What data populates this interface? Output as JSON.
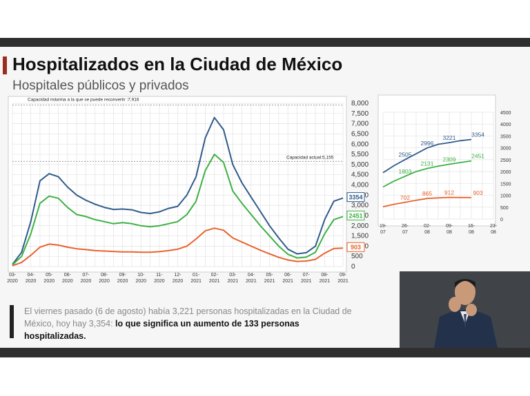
{
  "slide": {
    "title": "Hospitalizados en la Ciudad de México",
    "subtitle": "Hospitales públicos y privados",
    "note_plain": "El viernes pasado (6 de agosto) había 3,221 personas hospitalizadas en la Ciudad de México, hoy hay 3,354: ",
    "note_bold": "lo que significa un aumento de 133 personas hospitalizadas."
  },
  "colors": {
    "blue": "#2e5a8a",
    "green": "#3cb043",
    "orange": "#e8622c",
    "accent": "#9b2c1f"
  },
  "chart_data": [
    {
      "type": "line",
      "x_tick_labels": [
        "03-\n2020",
        "04-\n2020",
        "05-\n2020",
        "06-\n2020",
        "07-\n2020",
        "08-\n2020",
        "09-\n2020",
        "10-\n2020",
        "11-\n2020",
        "12-\n2020",
        "01-\n2021",
        "02-\n2021",
        "03-\n2021",
        "04-\n2021",
        "05-\n2021",
        "06-\n2021",
        "07-\n2021",
        "08-\n2021",
        "09-\n2021"
      ],
      "y_tick_labels": [
        "8,000",
        "7,500",
        "7,000",
        "6,500",
        "6,000",
        "5,500",
        "5,000",
        "4,500",
        "4,000",
        "3,500",
        "3,000",
        "2,500",
        "2,000",
        "1,500",
        "1,000",
        "500",
        "0"
      ],
      "ylim": [
        0,
        8000
      ],
      "grid": true,
      "reference_lines": [
        {
          "label": "Capacidad máxima a la que se puede reconvertir :7,916",
          "value": 7916
        },
        {
          "label": "Capacidad actual:5,155",
          "value": 5155
        }
      ],
      "series": [
        {
          "color": "#2e5a8a",
          "end_label": "3354",
          "points": [
            [
              0,
              100
            ],
            [
              0.5,
              700
            ],
            [
              1,
              2200
            ],
            [
              1.5,
              4200
            ],
            [
              2,
              4550
            ],
            [
              2.5,
              4400
            ],
            [
              3,
              3900
            ],
            [
              3.5,
              3500
            ],
            [
              4,
              3250
            ],
            [
              4.5,
              3050
            ],
            [
              5,
              2900
            ],
            [
              5.5,
              2800
            ],
            [
              6,
              2820
            ],
            [
              6.5,
              2780
            ],
            [
              7,
              2650
            ],
            [
              7.5,
              2600
            ],
            [
              8,
              2680
            ],
            [
              8.5,
              2850
            ],
            [
              9,
              2950
            ],
            [
              9.5,
              3500
            ],
            [
              10,
              4400
            ],
            [
              10.5,
              6300
            ],
            [
              11,
              7300
            ],
            [
              11.5,
              6700
            ],
            [
              12,
              5000
            ],
            [
              12.5,
              4100
            ],
            [
              13,
              3400
            ],
            [
              13.5,
              2700
            ],
            [
              14,
              2000
            ],
            [
              14.5,
              1400
            ],
            [
              15,
              850
            ],
            [
              15.5,
              620
            ],
            [
              16,
              680
            ],
            [
              16.5,
              1000
            ],
            [
              17,
              2300
            ],
            [
              17.5,
              3200
            ],
            [
              18,
              3354
            ]
          ]
        },
        {
          "color": "#3cb043",
          "end_label": "2451",
          "points": [
            [
              0,
              80
            ],
            [
              0.5,
              500
            ],
            [
              1,
              1600
            ],
            [
              1.5,
              3100
            ],
            [
              2,
              3450
            ],
            [
              2.5,
              3350
            ],
            [
              3,
              2900
            ],
            [
              3.5,
              2550
            ],
            [
              4,
              2450
            ],
            [
              4.5,
              2300
            ],
            [
              5,
              2200
            ],
            [
              5.5,
              2100
            ],
            [
              6,
              2150
            ],
            [
              6.5,
              2100
            ],
            [
              7,
              2000
            ],
            [
              7.5,
              1950
            ],
            [
              8,
              2000
            ],
            [
              8.5,
              2100
            ],
            [
              9,
              2200
            ],
            [
              9.5,
              2550
            ],
            [
              10,
              3200
            ],
            [
              10.5,
              4700
            ],
            [
              11,
              5500
            ],
            [
              11.5,
              5100
            ],
            [
              12,
              3700
            ],
            [
              12.5,
              3100
            ],
            [
              13,
              2550
            ],
            [
              13.5,
              2000
            ],
            [
              14,
              1500
            ],
            [
              14.5,
              1000
            ],
            [
              15,
              600
            ],
            [
              15.5,
              420
            ],
            [
              16,
              460
            ],
            [
              16.5,
              700
            ],
            [
              17,
              1600
            ],
            [
              17.5,
              2300
            ],
            [
              18,
              2451
            ]
          ]
        },
        {
          "color": "#e8622c",
          "end_label": "903",
          "points": [
            [
              0,
              40
            ],
            [
              0.5,
              200
            ],
            [
              1,
              550
            ],
            [
              1.5,
              950
            ],
            [
              2,
              1100
            ],
            [
              2.5,
              1050
            ],
            [
              3,
              950
            ],
            [
              3.5,
              870
            ],
            [
              4,
              830
            ],
            [
              4.5,
              780
            ],
            [
              5,
              760
            ],
            [
              5.5,
              740
            ],
            [
              6,
              720
            ],
            [
              6.5,
              720
            ],
            [
              7,
              700
            ],
            [
              7.5,
              700
            ],
            [
              8,
              730
            ],
            [
              8.5,
              780
            ],
            [
              9,
              850
            ],
            [
              9.5,
              1000
            ],
            [
              10,
              1350
            ],
            [
              10.5,
              1750
            ],
            [
              11,
              1880
            ],
            [
              11.5,
              1780
            ],
            [
              12,
              1400
            ],
            [
              12.5,
              1200
            ],
            [
              13,
              1000
            ],
            [
              13.5,
              800
            ],
            [
              14,
              620
            ],
            [
              14.5,
              450
            ],
            [
              15,
              320
            ],
            [
              15.5,
              250
            ],
            [
              16,
              270
            ],
            [
              16.5,
              350
            ],
            [
              17,
              650
            ],
            [
              17.5,
              880
            ],
            [
              18,
              903
            ]
          ]
        }
      ]
    },
    {
      "type": "line",
      "x_tick_labels": [
        "19-\n07",
        "26-\n07",
        "02-\n08",
        "09-\n08",
        "16-\n08",
        "23-\n08"
      ],
      "y_tick_labels": [
        "4500",
        "4000",
        "3500",
        "3000",
        "2500",
        "2000",
        "1500",
        "1000",
        "500",
        "0"
      ],
      "ylim": [
        0,
        4500
      ],
      "grid": true,
      "series": [
        {
          "color": "#2e5a8a",
          "points": [
            [
              0,
              1950
            ],
            [
              0.5,
              2250
            ],
            [
              1,
              2505
            ],
            [
              1.5,
              2750
            ],
            [
              2,
              2996
            ],
            [
              2.5,
              3150
            ],
            [
              3,
              3221
            ],
            [
              3.5,
              3300
            ],
            [
              4,
              3354
            ]
          ],
          "labels": [
            [
              1,
              2505,
              "2505"
            ],
            [
              2,
              2996,
              "2996"
            ],
            [
              3,
              3221,
              "3221"
            ],
            [
              4.3,
              3354,
              "3354"
            ]
          ]
        },
        {
          "color": "#3cb043",
          "points": [
            [
              0,
              1350
            ],
            [
              0.5,
              1600
            ],
            [
              1,
              1803
            ],
            [
              1.5,
              2000
            ],
            [
              2,
              2131
            ],
            [
              2.5,
              2230
            ],
            [
              3,
              2309
            ],
            [
              3.5,
              2380
            ],
            [
              4,
              2451
            ]
          ],
          "labels": [
            [
              1,
              1803,
              "1803"
            ],
            [
              2,
              2131,
              "2131"
            ],
            [
              3,
              2309,
              "2309"
            ],
            [
              4.3,
              2451,
              "2451"
            ]
          ]
        },
        {
          "color": "#e8622c",
          "points": [
            [
              0,
              520
            ],
            [
              0.5,
              620
            ],
            [
              1,
              702
            ],
            [
              1.5,
              790
            ],
            [
              2,
              865
            ],
            [
              2.5,
              890
            ],
            [
              3,
              912
            ],
            [
              3.5,
              905
            ],
            [
              4,
              903
            ]
          ],
          "labels": [
            [
              1,
              702,
              "702"
            ],
            [
              2,
              865,
              "865"
            ],
            [
              3,
              912,
              "912"
            ],
            [
              4.3,
              903,
              "903"
            ]
          ]
        }
      ]
    }
  ]
}
